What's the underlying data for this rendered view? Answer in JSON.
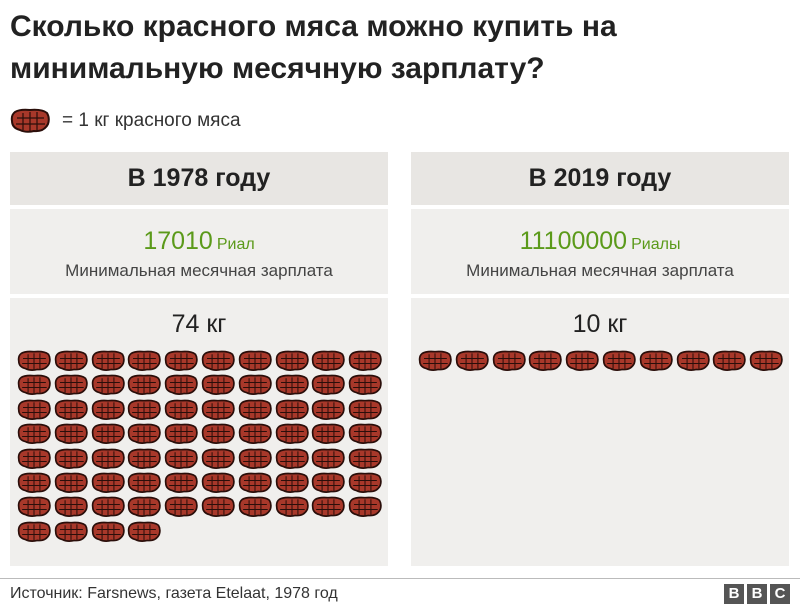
{
  "title": "Сколько красного мяса можно купить на минимальную месячную зарплату?",
  "legend": {
    "icon": "steak-icon",
    "text": "= 1 кг красного мяса"
  },
  "colors": {
    "meat": "#a8382a",
    "meat_outline": "#2a0e0a",
    "wage_green": "#5b9a1a",
    "header_bg": "#e8e6e3",
    "panel_bg": "#f0efed"
  },
  "chart_data": {
    "type": "pictogram",
    "unit": "1 кг красного мяса",
    "categories": [
      "В 1978 году",
      "В 2019 году"
    ],
    "values": [
      74,
      10
    ]
  },
  "panels": [
    {
      "header": "В 1978 году",
      "wage_amount": "17010",
      "wage_unit": "Риал",
      "wage_label": "Минимальная месячная зарплата",
      "kg_label": "74 кг",
      "kg": 74
    },
    {
      "header": "В 2019 году",
      "wage_amount": "11100000",
      "wage_unit": "Риалы",
      "wage_label": "Минимальная месячная зарплата",
      "kg_label": "10 кг",
      "kg": 10
    }
  ],
  "footer": {
    "source": "Источник: Farsnews, газета Etelaat, 1978 год",
    "logo": [
      "B",
      "B",
      "C"
    ]
  }
}
